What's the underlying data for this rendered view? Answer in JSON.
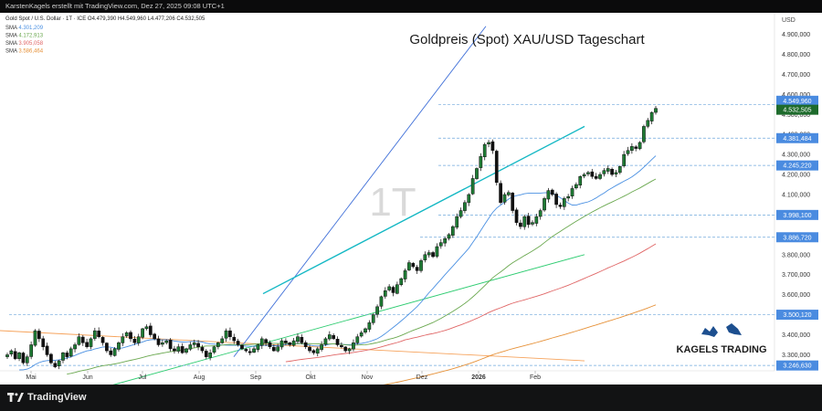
{
  "header": {
    "caption": "KarstenKagels erstellt mit TradingView.com, Dez 27, 2025 09:08 UTC+1"
  },
  "legend": {
    "symbol": "Gold Spot / U.S. Dollar · 1T · ICE",
    "ohlc": "O4.479,390  H4.549,960  L4.477,206  C4.532,505",
    "sma": [
      {
        "label": "SMA",
        "value": "4.301,209",
        "color": "#4a90e2"
      },
      {
        "label": "SMA",
        "value": "4.172,913",
        "color": "#6aa84f"
      },
      {
        "label": "SMA",
        "value": "3.905,058",
        "color": "#e06666"
      },
      {
        "label": "SMA",
        "value": "3.586,464",
        "color": "#e69138"
      }
    ]
  },
  "branding": {
    "tradingview": "TradingView",
    "kagels": "KAGELS TRADING"
  },
  "chart_data": {
    "type": "candlestick",
    "title": "Goldpreis (Spot) XAU/USD Tageschart",
    "currency": "USD",
    "watermark": "1T",
    "yaxis_ticks": [
      3300,
      3400,
      3500,
      3600,
      3700,
      3800,
      3900,
      4000,
      4100,
      4200,
      4300,
      4400,
      4500,
      4600,
      4700,
      4800,
      4900
    ],
    "yaxis_tick_labels": [
      "3.300,000",
      "3.400,000",
      "3.500,000",
      "3.600,000",
      "3.700,000",
      "3.800,000",
      "3.900,000",
      "4.000,000",
      "4.100,000",
      "4.200,000",
      "4.300,000",
      "4.400,000",
      "4.500,000",
      "4.600,000",
      "4.700,000",
      "4.800,000",
      "4.900,000"
    ],
    "ylim": [
      3220,
      4980
    ],
    "x_months": [
      "Mai",
      "Jun",
      "Jul",
      "Aug",
      "Sep",
      "Okt",
      "Nov",
      "Dez",
      "2026",
      "Feb"
    ],
    "price_labels": [
      {
        "value": 4549.96,
        "label": "4.549,960",
        "kind": "level"
      },
      {
        "value": 4532.505,
        "label": "4.532,505",
        "kind": "last"
      },
      {
        "value": 4381.484,
        "label": "4.381,484",
        "kind": "level"
      },
      {
        "value": 4245.22,
        "label": "4.245,220",
        "kind": "level"
      },
      {
        "value": 3998.1,
        "label": "3.998,100",
        "kind": "level"
      },
      {
        "value": 3886.72,
        "label": "3.886,720",
        "kind": "level"
      },
      {
        "value": 3500.12,
        "label": "3.500,120",
        "kind": "level"
      },
      {
        "value": 3246.63,
        "label": "3.246,630",
        "kind": "level"
      }
    ],
    "trendlines": [
      {
        "from": [
          "2025-03-25",
          3430
        ],
        "to": [
          "2026-02-28",
          3270
        ],
        "color": "#f6a35c"
      },
      {
        "from": [
          "2025-06-15",
          3150
        ],
        "to": [
          "2026-02-28",
          3800
        ],
        "color": "#2ecc71"
      },
      {
        "from": [
          "2025-08-20",
          3290
        ],
        "to": [
          "2026-01-05",
          4940
        ],
        "color": "#3f6fd8"
      },
      {
        "from": [
          "2025-09-05",
          3605
        ],
        "to": [
          "2026-02-28",
          4440
        ],
        "color": "#14b8c4"
      }
    ],
    "closes": [
      3300,
      3320,
      3280,
      3310,
      3260,
      3290,
      3350,
      3420,
      3380,
      3340,
      3300,
      3260,
      3240,
      3270,
      3310,
      3290,
      3330,
      3350,
      3390,
      3360,
      3340,
      3380,
      3420,
      3390,
      3360,
      3320,
      3300,
      3330,
      3360,
      3390,
      3410,
      3380,
      3360,
      3390,
      3430,
      3440,
      3400,
      3380,
      3350,
      3360,
      3370,
      3330,
      3320,
      3340,
      3310,
      3330,
      3350,
      3360,
      3340,
      3320,
      3290,
      3310,
      3340,
      3360,
      3380,
      3420,
      3390,
      3370,
      3350,
      3330,
      3320,
      3310,
      3330,
      3350,
      3380,
      3360,
      3340,
      3320,
      3340,
      3370,
      3360,
      3350,
      3370,
      3390,
      3360,
      3340,
      3320,
      3310,
      3330,
      3350,
      3380,
      3400,
      3380,
      3350,
      3340,
      3320,
      3330,
      3360,
      3390,
      3410,
      3430,
      3460,
      3500,
      3540,
      3590,
      3620,
      3640,
      3610,
      3650,
      3680,
      3720,
      3760,
      3740,
      3720,
      3770,
      3800,
      3810,
      3790,
      3840,
      3860,
      3880,
      3900,
      3940,
      3990,
      4020,
      4060,
      4100,
      4180,
      4230,
      4290,
      4350,
      4360,
      4320,
      4160,
      4060,
      4100,
      4110,
      4020,
      3960,
      3940,
      3990,
      3950,
      3960,
      3990,
      4020,
      4080,
      4120,
      4100,
      4050,
      4040,
      4080,
      4090,
      4130,
      4150,
      4190,
      4200,
      4210,
      4190,
      4180,
      4200,
      4220,
      4230,
      4200,
      4210,
      4240,
      4300,
      4320,
      4340,
      4330,
      4360,
      4440,
      4470,
      4510,
      4530
    ],
    "sma_series": [
      {
        "name": "SMA 4.301,209",
        "color": "#4a90e2",
        "period": 20
      },
      {
        "name": "SMA 4.172,913",
        "color": "#6aa84f",
        "period": 50
      },
      {
        "name": "SMA 3.905,058",
        "color": "#e06666",
        "period": 100
      },
      {
        "name": "SMA 3.586,464",
        "color": "#e69138",
        "period": 200
      }
    ]
  }
}
